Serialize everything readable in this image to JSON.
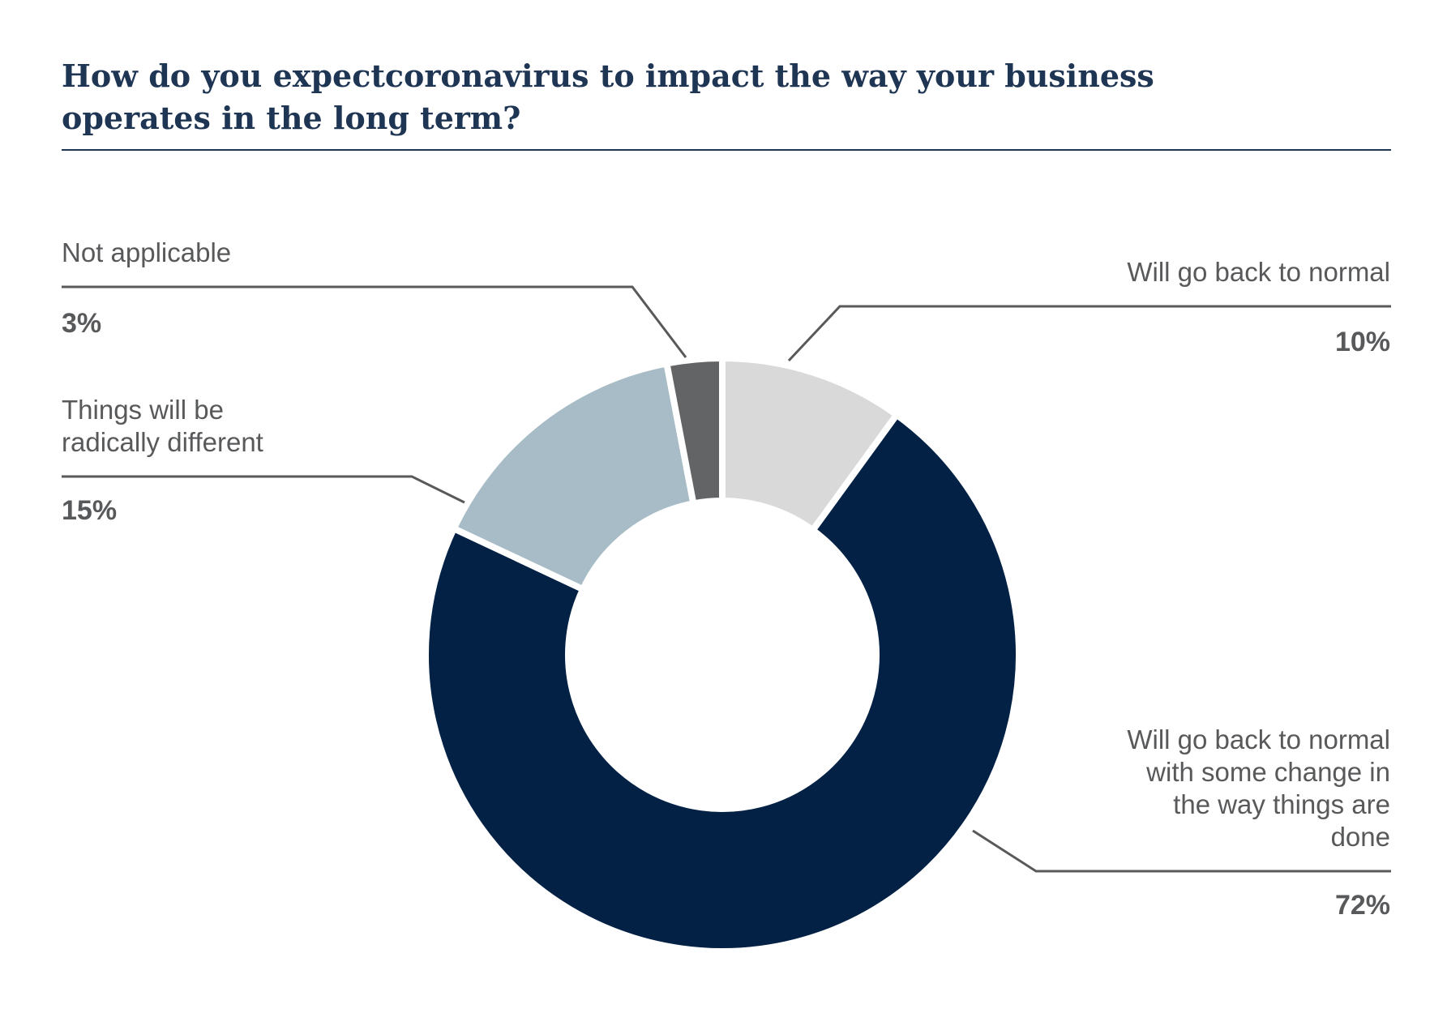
{
  "chart_data": {
    "type": "pie",
    "title": "How do you expectcoronavirus to impact the way your business\noperates in the long term?",
    "categories": [
      "Will go back to normal",
      "Will go back to normal with some change in the way things are done",
      "Things will be radically different",
      "Not applicable"
    ],
    "values": [
      10,
      72,
      15,
      3
    ],
    "value_labels": [
      "10%",
      "72%",
      "15%",
      "3%"
    ],
    "colors": [
      "#d9d9d9",
      "#022145",
      "#a7bcc6",
      "#636466"
    ],
    "donut": true
  },
  "labels": {
    "normal": "Will go back to normal",
    "normal_change": "Will go back to normal\nwith some change in\nthe way things are\ndone",
    "radical": "Things will be\nradically different",
    "na": "Not applicable"
  },
  "percents": {
    "normal": "10%",
    "normal_change": "72%",
    "radical": "15%",
    "na": "3%"
  }
}
